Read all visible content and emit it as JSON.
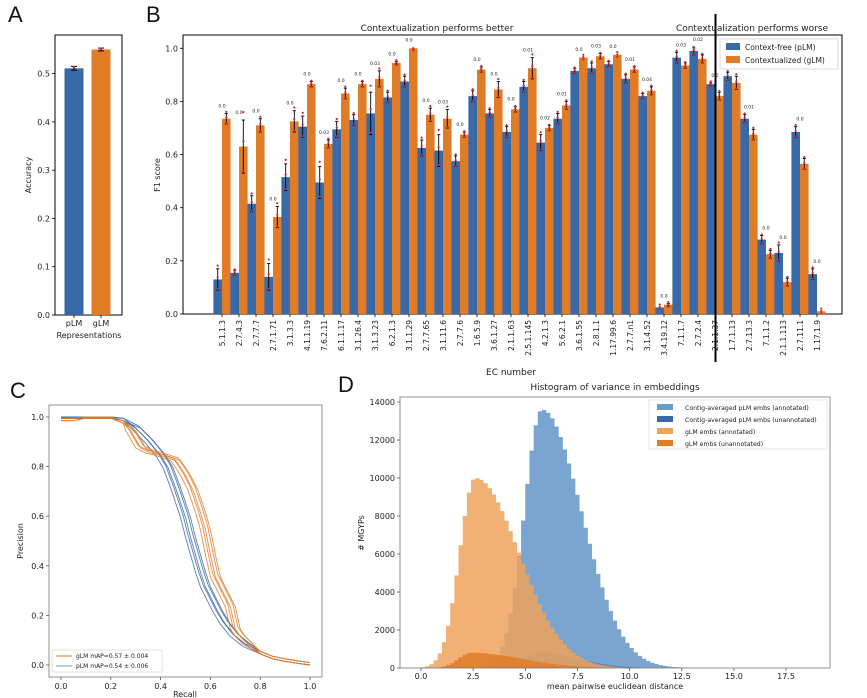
{
  "colors": {
    "plm": "#3a69a8",
    "glm": "#e07b27",
    "point": "#d62728",
    "plm_light": "#6b9bcb",
    "glm_light": "#eea25c"
  },
  "chart_data": [
    {
      "panel": "A",
      "type": "bar",
      "title": "",
      "xlabel": "Representations",
      "ylabel": "Accuracy",
      "categories": [
        "pLM",
        "gLM"
      ],
      "values": [
        0.511,
        0.55
      ],
      "errors": [
        0.004,
        0.003
      ],
      "ylim": [
        0,
        0.58
      ],
      "yticks": [
        0.0,
        0.1,
        0.2,
        0.3,
        0.4,
        0.5
      ],
      "ytick_labels": [
        "0.0",
        "0.1",
        "0.2",
        "0.3",
        "0.4",
        "0.5"
      ]
    },
    {
      "panel": "B",
      "type": "bar",
      "xlabel": "EC number",
      "ylabel": "F1 score",
      "ylim": [
        0,
        1.05
      ],
      "yticks": [
        0.0,
        0.2,
        0.4,
        0.6,
        0.8,
        1.0
      ],
      "ytick_labels": [
        "0.0",
        "0.2",
        "0.4",
        "0.6",
        "0.8",
        "1.0"
      ],
      "section_titles": [
        "Contextualization performs better",
        "Contextualization performs worse"
      ],
      "divider_after_index": 29,
      "legend": [
        "Context-free (pLM)",
        "Contextualized (gLM)"
      ],
      "legend_position": "top-right",
      "categories": [
        "5.1.1.3",
        "2.7.4.3",
        "2.7.7.7",
        "2.7.1.71",
        "3.1.3.3",
        "4.1.1.19",
        "7.6.2.11",
        "6.1.1.17",
        "3.1.26.4",
        "3.1.3.23",
        "6.2.1.3",
        "3.1.1.29",
        "2.7.7.65",
        "3.1.11.6",
        "2.7.7.6",
        "1.6.5.9",
        "3.6.1.27",
        "2.1.1.63",
        "2.5.1.145",
        "4.2.1.3",
        "5.6.2.1",
        "3.6.1.55",
        "2.8.1.1",
        "1.17.99.6",
        "2.7.7.n1",
        "3.1.4.52",
        "3.4.19.12",
        "7.1.1.7",
        "2.7.2.4",
        "2.1.1.37",
        "1.7.1.13",
        "2.7.13.3",
        "7.1.1.2",
        "2.1.1.113",
        "2.7.11.1",
        "1.17.1.9"
      ],
      "series": [
        {
          "name": "Context-free (pLM)",
          "values": [
            0.13,
            0.155,
            0.415,
            0.14,
            0.515,
            0.705,
            0.495,
            0.695,
            0.73,
            0.755,
            0.815,
            0.875,
            0.625,
            0.615,
            0.575,
            0.82,
            0.755,
            0.685,
            0.855,
            0.645,
            0.735,
            0.915,
            0.925,
            0.94,
            0.885,
            0.82,
            0.025,
            0.965,
            0.99,
            0.865,
            0.895,
            0.735,
            0.28,
            0.23,
            0.685,
            0.15
          ],
          "errors": [
            0.04,
            0.01,
            0.03,
            0.05,
            0.05,
            0.04,
            0.06,
            0.03,
            0.02,
            0.08,
            0.02,
            0.02,
            0.03,
            0.06,
            0.02,
            0.02,
            0.015,
            0.02,
            0.02,
            0.03,
            0.02,
            0.01,
            0.02,
            0.01,
            0.015,
            0.01,
            0.003,
            0.02,
            0.015,
            0.005,
            0.015,
            0.015,
            0.015,
            0.03,
            0.02,
            0.02
          ]
        },
        {
          "name": "Contextualized (gLM)",
          "values": [
            0.735,
            0.63,
            0.71,
            0.365,
            0.725,
            0.865,
            0.64,
            0.83,
            0.865,
            0.885,
            0.945,
            1.0,
            0.75,
            0.735,
            0.675,
            0.92,
            0.845,
            0.77,
            0.925,
            0.7,
            0.785,
            0.965,
            0.97,
            0.975,
            0.92,
            0.84,
            0.035,
            0.935,
            0.96,
            0.82,
            0.87,
            0.675,
            0.225,
            0.12,
            0.565,
            0.01
          ],
          "errors": [
            0.02,
            0.1,
            0.025,
            0.04,
            0.04,
            0.01,
            0.015,
            0.02,
            0.01,
            0.03,
            0.005,
            0.003,
            0.025,
            0.035,
            0.01,
            0.01,
            0.03,
            0.01,
            0.04,
            0.01,
            0.015,
            0.003,
            0.01,
            0.003,
            0.01,
            0.015,
            0.005,
            0.01,
            0.015,
            0.015,
            0.025,
            0.02,
            0.015,
            0.015,
            0.02,
            0.003
          ]
        }
      ],
      "pvalue_labels": [
        "0.0",
        "0.0",
        "0.0",
        "0.0",
        "0.0",
        "0.0",
        "0.03",
        "0.0",
        "0.0",
        "0.03",
        "0.0",
        "0.0",
        "0.0",
        "0.03",
        "0.0",
        "0.0",
        "0.0",
        "0.0",
        "0.01",
        "0.02",
        "0.01",
        "0.0",
        "0.03",
        "0.0",
        "0.01",
        "0.04",
        "0.0",
        "0.03",
        "0.02",
        "0.0",
        "0.03",
        "0.01",
        "0.0",
        "0.0",
        "0.0",
        "0.0"
      ]
    },
    {
      "panel": "C",
      "type": "line",
      "xlabel": "Recall",
      "ylabel": "Precision",
      "xlim": [
        0,
        1
      ],
      "ylim": [
        0,
        1
      ],
      "xticks": [
        "0.0",
        "0.2",
        "0.4",
        "0.6",
        "0.8",
        "1.0"
      ],
      "yticks": [
        "0.0",
        "0.2",
        "0.4",
        "0.6",
        "0.8",
        "1.0"
      ],
      "legend": [
        "gLM mAP=0.57 ± 0.004",
        "pLM mAP=0.54 ± 0.006"
      ],
      "legend_position": "lower-left",
      "series": [
        {
          "name": "gLM",
          "x": [
            0.0,
            0.05,
            0.1,
            0.15,
            0.2,
            0.25,
            0.28,
            0.32,
            0.36,
            0.4,
            0.43,
            0.46,
            0.5,
            0.53,
            0.56,
            0.58,
            0.6,
            0.62,
            0.65,
            0.68,
            0.7,
            0.72,
            0.75,
            0.8,
            0.85,
            0.9,
            0.95,
            1.0
          ],
          "y": [
            0.99,
            0.99,
            1.0,
            1.0,
            1.0,
            0.98,
            0.95,
            0.88,
            0.86,
            0.85,
            0.84,
            0.83,
            0.77,
            0.71,
            0.62,
            0.55,
            0.45,
            0.36,
            0.3,
            0.24,
            0.15,
            0.12,
            0.09,
            0.05,
            0.03,
            0.02,
            0.012,
            0.005
          ]
        },
        {
          "name": "pLM",
          "x": [
            0.0,
            0.05,
            0.1,
            0.15,
            0.2,
            0.25,
            0.3,
            0.35,
            0.4,
            0.43,
            0.46,
            0.5,
            0.52,
            0.54,
            0.56,
            0.58,
            0.6,
            0.63,
            0.66,
            0.7,
            0.75,
            0.8,
            0.85,
            0.9,
            0.95,
            1.0
          ],
          "y": [
            1.0,
            1.0,
            1.0,
            1.0,
            1.0,
            0.99,
            0.96,
            0.91,
            0.85,
            0.8,
            0.72,
            0.6,
            0.52,
            0.45,
            0.38,
            0.32,
            0.28,
            0.22,
            0.17,
            0.12,
            0.08,
            0.05,
            0.03,
            0.02,
            0.012,
            0.005
          ]
        }
      ],
      "n_replicates": 5
    },
    {
      "panel": "D",
      "type": "bar",
      "title": "Histogram of variance in embeddings",
      "xlabel": "mean pairwise euclidean distance",
      "ylabel": "# MGYPs",
      "xlim": [
        -0.7,
        19.5
      ],
      "ylim": [
        0,
        14200
      ],
      "xticks": [
        "0.0",
        "2.5",
        "5.0",
        "7.5",
        "10.0",
        "12.5",
        "15.0",
        "17.5"
      ],
      "yticks": [
        "0",
        "2000",
        "4000",
        "6000",
        "8000",
        "10000",
        "12000",
        "14000"
      ],
      "legend": [
        "Contig-averaged pLM embs (annotated)",
        "Contig-averaged pLM embs (unannotated)",
        "gLM embs (annotated)",
        "gLM embs (unannotated)"
      ],
      "legend_position": "top-right",
      "bin_width": 0.2,
      "series": [
        {
          "name": "Contig-averaged pLM embs (annotated)",
          "peak_x": 5.8,
          "peak_y": 13600
        },
        {
          "name": "Contig-averaged pLM embs (unannotated)",
          "peak_x": 5.8,
          "peak_y": 800
        },
        {
          "name": "gLM embs (annotated)",
          "peak_x": 2.6,
          "peak_y": 10000
        },
        {
          "name": "gLM embs (unannotated)",
          "peak_x": 2.4,
          "peak_y": 800
        }
      ]
    }
  ],
  "panels": {
    "A": "A",
    "B": "B",
    "C": "C",
    "D": "D"
  }
}
